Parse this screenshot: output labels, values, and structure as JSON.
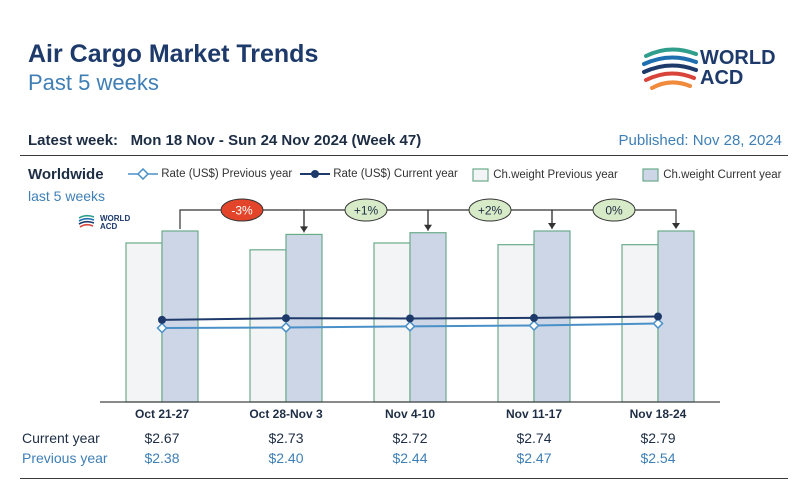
{
  "header": {
    "title": "Air Cargo Market Trends",
    "subtitle": "Past 5 weeks",
    "logo_text_line1": "WORLD",
    "logo_text_line2": "ACD",
    "latest_week_label": "Latest week:",
    "latest_week_value": "Mon 18 Nov - Sun 24 Nov 2024 (Week 47)",
    "published": "Published: Nov 28, 2024"
  },
  "region": {
    "name": "Worldwide",
    "period": "last 5 weeks"
  },
  "watermark": {
    "line1": "WORLD",
    "line2": "ACD"
  },
  "legend": [
    {
      "label": "Rate (US$) Previous year",
      "kind": "line-diamond",
      "color": "#4a90c8"
    },
    {
      "label": "Rate (US$) Current year",
      "kind": "line-dot",
      "color": "#1d3a6b"
    },
    {
      "label": "Ch.weight Previous year",
      "kind": "box",
      "color": "#f3f4f6"
    },
    {
      "label": "Ch.weight Current year",
      "kind": "box",
      "color": "#cdd6e6"
    }
  ],
  "table": {
    "current_label": "Current year",
    "previous_label": "Previous year",
    "current_values": [
      "$2.67",
      "$2.73",
      "$2.72",
      "$2.74",
      "$2.79"
    ],
    "previous_values": [
      "$2.38",
      "$2.40",
      "$2.44",
      "$2.47",
      "$2.54"
    ]
  },
  "chart_data": {
    "type": "bar",
    "categories": [
      "Oct 21-27",
      "Oct 28-Nov 3",
      "Nov 4-10",
      "Nov 11-17",
      "Nov 18-24"
    ],
    "series": [
      {
        "name": "Ch.weight Previous year",
        "kind": "bar",
        "values": [
          0.93,
          0.89,
          0.93,
          0.92,
          0.92
        ]
      },
      {
        "name": "Ch.weight Current year",
        "kind": "bar",
        "values": [
          1.0,
          0.98,
          0.99,
          1.0,
          1.0
        ]
      },
      {
        "name": "Rate (US$) Previous year",
        "kind": "line",
        "values": [
          2.38,
          2.4,
          2.44,
          2.47,
          2.54
        ]
      },
      {
        "name": "Rate (US$) Current year",
        "kind": "line",
        "values": [
          2.67,
          2.73,
          2.72,
          2.74,
          2.79
        ]
      }
    ],
    "changes": [
      "-3%",
      "+1%",
      "+2%",
      "0%"
    ],
    "change_colors": [
      "#e2452a",
      "#d7ebc8",
      "#d7ebc8",
      "#d7ebc8"
    ],
    "colors": {
      "bar_prev_fill": "#f3f4f6",
      "bar_cur_fill": "#cdd6e6",
      "bar_stroke": "#6aab8a",
      "line_prev": "#4a90c8",
      "line_cur": "#1d3a6b"
    }
  }
}
